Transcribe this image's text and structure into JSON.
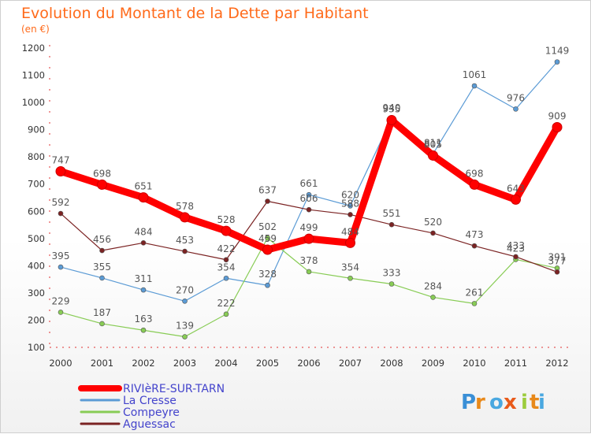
{
  "chart_data": {
    "type": "line",
    "title": "Evolution du Montant de la Dette par Habitant",
    "subtitle": "(en €)",
    "x": [
      "2000",
      "2001",
      "2002",
      "2003",
      "2004",
      "2005",
      "2006",
      "2007",
      "2008",
      "2009",
      "2010",
      "2011",
      "2012"
    ],
    "ylim": [
      100,
      1200
    ],
    "yticks": [
      100,
      200,
      300,
      400,
      500,
      600,
      700,
      800,
      900,
      1000,
      1100,
      1200
    ],
    "grid": false,
    "legend_position": "bottom-left",
    "series": [
      {
        "name": "RIVIèRE-SUR-TARN",
        "color": "#ff0000",
        "legend_color": "#4444cc",
        "values": [
          747,
          698,
          651,
          578,
          528,
          459,
          499,
          484,
          935,
          805,
          698,
          643,
          909
        ]
      },
      {
        "name": "La Cresse",
        "color": "#5b9bd5",
        "legend_color": "#4444cc",
        "values": [
          395,
          355,
          311,
          270,
          354,
          328,
          661,
          620,
          940,
          811,
          1061,
          976,
          1149
        ]
      },
      {
        "name": "Compeyre",
        "color": "#88cc55",
        "legend_color": "#4444cc",
        "values": [
          229,
          187,
          163,
          139,
          222,
          502,
          378,
          354,
          333,
          284,
          261,
          423,
          391
        ]
      },
      {
        "name": "Aguessac",
        "color": "#7b2323",
        "legend_color": "#4444cc",
        "values": [
          592,
          456,
          484,
          453,
          422,
          637,
          606,
          588,
          551,
          520,
          473,
          433,
          377
        ]
      }
    ]
  },
  "watermark": "Proxiti"
}
